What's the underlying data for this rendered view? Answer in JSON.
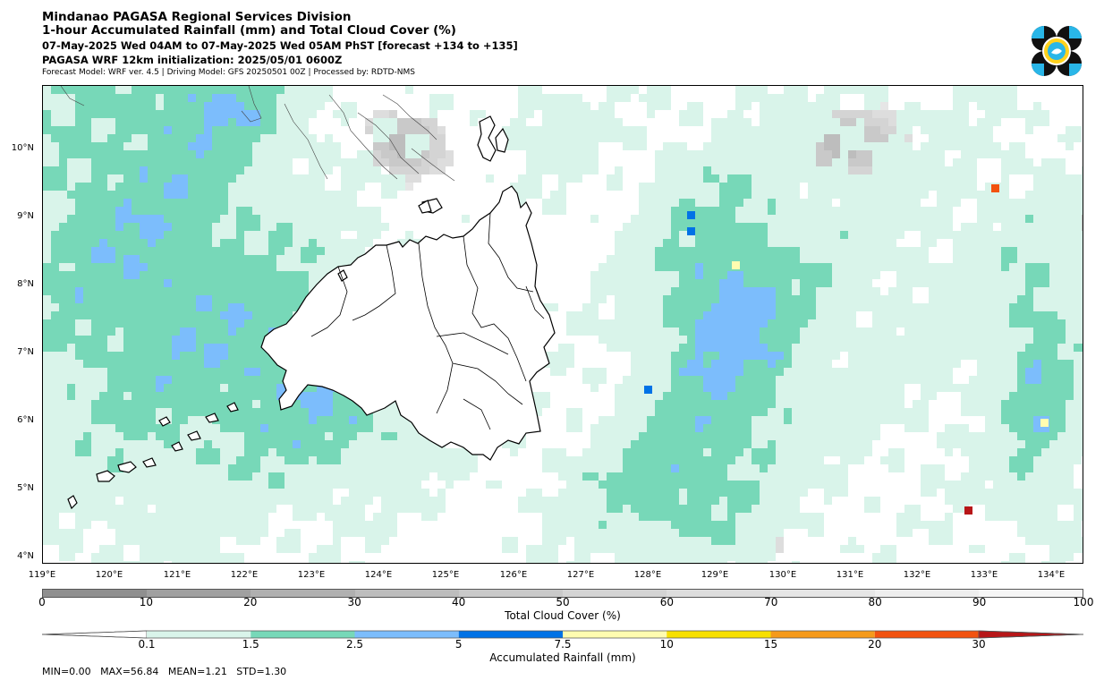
{
  "header": {
    "title": "Mindanao PAGASA Regional Services Division",
    "subtitle": "1-hour Accumulated Rainfall (mm) and Total Cloud Cover (%)",
    "valid_time": "07-May-2025 Wed 04AM to 07-May-2025 Wed 05AM PhST [forecast +134 to +135]",
    "init": "PAGASA WRF 12km initialization: 2025/05/01 0600Z",
    "model_info": "Forecast Model: WRF ver. 4.5 | Driving Model: GFS 20250501 00Z | Processed by: RDTD-NMS"
  },
  "map": {
    "lat_labels": [
      "10°N",
      "9°N",
      "8°N",
      "7°N",
      "6°N",
      "5°N",
      "4°N"
    ],
    "lon_labels": [
      "119°E",
      "120°E",
      "121°E",
      "122°E",
      "123°E",
      "124°E",
      "125°E",
      "126°E",
      "127°E",
      "128°E",
      "129°E",
      "130°E",
      "131°E",
      "132°E",
      "133°E",
      "134°E"
    ]
  },
  "cloud_colorbar": {
    "label": "Total Cloud Cover (%)",
    "ticks": [
      "0",
      "10",
      "20",
      "30",
      "40",
      "50",
      "60",
      "70",
      "80",
      "90",
      "100"
    ],
    "colors": [
      "#8f8f8f",
      "#a0a0a0",
      "#b0b0b0",
      "#bdbdbd",
      "#c9c9c9",
      "#d4d4d4",
      "#dddddd",
      "#e6e6e6",
      "#eeeeee",
      "#f6f6f6"
    ]
  },
  "rain_colorbar": {
    "label": "Accumulated Rainfall (mm)",
    "ticks": [
      "0.1",
      "1.5",
      "2.5",
      "5",
      "7.5",
      "10",
      "15",
      "20",
      "30"
    ],
    "colors": [
      "#ffffff",
      "#d9f4ea",
      "#77d8b8",
      "#7cbdfc",
      "#0072e6",
      "#fffcb0",
      "#f7e000",
      "#f59a1b",
      "#f2520f",
      "#b71618"
    ]
  },
  "stats": {
    "text": "MIN=0.00   MAX=56.84   MEAN=1.21   STD=1.30"
  }
}
